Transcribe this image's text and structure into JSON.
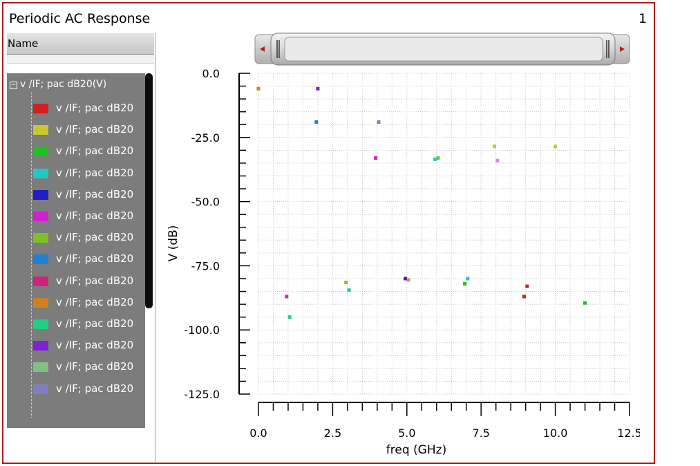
{
  "window": {
    "title": "Periodic AC Response",
    "page_number": "1"
  },
  "panel": {
    "header": "Name",
    "root_label": "v /IF; pac dB20(V)",
    "items": [
      {
        "label": "v /IF; pac dB20",
        "color": "#d02020"
      },
      {
        "label": "v /IF; pac dB20",
        "color": "#c8c830"
      },
      {
        "label": "v /IF; pac dB20",
        "color": "#20c020"
      },
      {
        "label": "v /IF; pac dB20",
        "color": "#20c8c8"
      },
      {
        "label": "v /IF; pac dB20",
        "color": "#2020c0"
      },
      {
        "label": "v /IF; pac dB20",
        "color": "#d020d0"
      },
      {
        "label": "v /IF; pac dB20",
        "color": "#80c020"
      },
      {
        "label": "v /IF; pac dB20",
        "color": "#2080d0"
      },
      {
        "label": "v /IF; pac dB20",
        "color": "#d02080"
      },
      {
        "label": "v /IF; pac dB20",
        "color": "#d08020"
      },
      {
        "label": "v /IF; pac dB20",
        "color": "#20d080"
      },
      {
        "label": "v /IF; pac dB20",
        "color": "#8020d0"
      },
      {
        "label": "v /IF; pac dB20",
        "color": "#80c080"
      },
      {
        "label": "v /IF; pac dB20",
        "color": "#8080c0"
      }
    ]
  },
  "chart_data": {
    "type": "scatter",
    "xlabel": "freq (GHz)",
    "ylabel": "V (dB)",
    "xlim": [
      0,
      12.5
    ],
    "ylim": [
      -125,
      0
    ],
    "xticks": [
      "0.0",
      "2.5",
      "5.0",
      "7.5",
      "10.0",
      "12.5"
    ],
    "yticks": [
      "0.0",
      "-25.0",
      "-50.0",
      "-75.0",
      "-100.0",
      "-125.0"
    ],
    "grid": true,
    "points": [
      {
        "x": 0.0,
        "y": -6,
        "color": "#d08020"
      },
      {
        "x": 2.0,
        "y": -6,
        "color": "#8020d0"
      },
      {
        "x": 1.95,
        "y": -19,
        "color": "#2080d0"
      },
      {
        "x": 4.05,
        "y": -19,
        "color": "#8080c0"
      },
      {
        "x": 3.95,
        "y": -33,
        "color": "#d020d0"
      },
      {
        "x": 6.05,
        "y": -33,
        "color": "#80c020"
      },
      {
        "x": 5.95,
        "y": -33.5,
        "color": "#20c8c8"
      },
      {
        "x": 7.95,
        "y": -28.5,
        "color": "#c8c830"
      },
      {
        "x": 10.0,
        "y": -28.5,
        "color": "#c8c830"
      },
      {
        "x": 8.05,
        "y": -34,
        "color": "#e080e0"
      },
      {
        "x": 4.95,
        "y": -80,
        "color": "#2020c0"
      },
      {
        "x": 5.05,
        "y": -80.5,
        "color": "#e08080"
      },
      {
        "x": 7.05,
        "y": -80,
        "color": "#20c8c8"
      },
      {
        "x": 6.95,
        "y": -82,
        "color": "#20c020"
      },
      {
        "x": 2.95,
        "y": -81.5,
        "color": "#80c020"
      },
      {
        "x": 3.05,
        "y": -84.5,
        "color": "#20d080"
      },
      {
        "x": 0.95,
        "y": -87,
        "color": "#d020d0"
      },
      {
        "x": 1.05,
        "y": -95,
        "color": "#20d080"
      },
      {
        "x": 9.05,
        "y": -83,
        "color": "#d02020"
      },
      {
        "x": 8.95,
        "y": -87,
        "color": "#d02020"
      },
      {
        "x": 11.0,
        "y": -89.5,
        "color": "#20c020"
      }
    ]
  }
}
